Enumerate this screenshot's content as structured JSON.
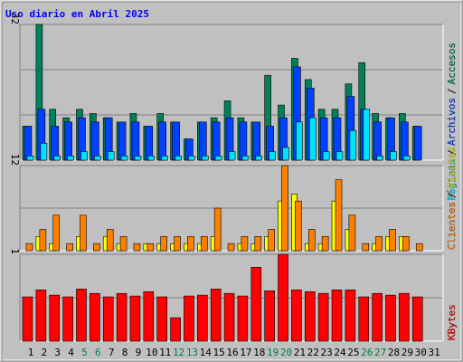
{
  "chart_data": [
    {
      "type": "bar",
      "title": "Uso diario en Abril 2025",
      "legend_separator": "/",
      "ylim": [
        0,
        32
      ],
      "yticks": [
        32
      ],
      "series": [
        {
          "name": "Páginas",
          "color": "#00e0ff",
          "values": [
            1,
            4,
            1,
            1,
            2,
            1,
            2,
            1,
            1,
            1,
            1,
            1,
            1,
            1,
            1,
            2,
            1,
            1,
            2,
            3,
            9,
            10,
            2,
            2,
            7,
            12,
            1,
            2,
            1,
            0,
            null
          ]
        },
        {
          "name": "Archivos",
          "color": "#0040ff",
          "values": [
            8,
            12,
            8,
            9,
            10,
            9,
            10,
            9,
            9,
            8,
            9,
            9,
            5,
            9,
            9,
            10,
            9,
            9,
            8,
            10,
            22,
            17,
            10,
            10,
            15,
            12,
            9,
            10,
            9,
            8,
            null
          ]
        },
        {
          "name": "Accesos",
          "color": "#00805c",
          "values": [
            8,
            32,
            12,
            10,
            12,
            11,
            10,
            9,
            11,
            8,
            11,
            9,
            5,
            9,
            10,
            14,
            10,
            9,
            20,
            13,
            24,
            19,
            12,
            12,
            18,
            23,
            11,
            10,
            11,
            8,
            null
          ]
        }
      ]
    },
    {
      "type": "bar",
      "legend_separator": "/",
      "ylim": [
        0,
        12
      ],
      "yticks": [
        12
      ],
      "series": [
        {
          "name": "Clientes",
          "color": "#ff8000",
          "values": [
            1,
            3,
            5,
            1,
            5,
            1,
            3,
            2,
            1,
            1,
            2,
            2,
            2,
            2,
            6,
            1,
            2,
            2,
            3,
            12,
            7,
            3,
            2,
            10,
            5,
            1,
            2,
            3,
            2,
            1,
            null
          ]
        },
        {
          "name": "Visitas",
          "color": "#ffff00",
          "values": [
            0,
            2,
            1,
            0,
            2,
            0,
            2,
            1,
            0,
            1,
            1,
            1,
            1,
            1,
            2,
            0,
            1,
            1,
            2,
            7,
            8,
            1,
            1,
            7,
            3,
            0,
            1,
            2,
            2,
            0,
            null
          ]
        }
      ]
    },
    {
      "type": "bar",
      "ylim": [
        0,
        1
      ],
      "yticks": [
        1
      ],
      "series": [
        {
          "name": "KBytes",
          "color": "#ff0000",
          "values": [
            0.51,
            0.59,
            0.53,
            0.51,
            0.6,
            0.55,
            0.51,
            0.55,
            0.52,
            0.57,
            0.51,
            0.27,
            0.52,
            0.53,
            0.6,
            0.55,
            0.52,
            0.85,
            0.58,
            1,
            0.59,
            0.57,
            0.55,
            0.59,
            0.59,
            0.51,
            0.55,
            0.53,
            0.55,
            0.51,
            null
          ]
        }
      ],
      "categories": [
        "1",
        "2",
        "3",
        "4",
        "5",
        "6",
        "7",
        "8",
        "9",
        "10",
        "11",
        "12",
        "13",
        "14",
        "15",
        "16",
        "17",
        "18",
        "19",
        "20",
        "21",
        "22",
        "23",
        "24",
        "25",
        "26",
        "27",
        "28",
        "29",
        "30",
        "31"
      ],
      "category_colors": [
        "#000",
        "#000",
        "#000",
        "#000",
        "#008040",
        "#008040",
        "#000",
        "#000",
        "#000",
        "#000",
        "#000",
        "#008040",
        "#008040",
        "#000",
        "#000",
        "#000",
        "#000",
        "#000",
        "#008040",
        "#008040",
        "#000",
        "#000",
        "#000",
        "#000",
        "#000",
        "#008040",
        "#008040",
        "#000",
        "#000",
        "#000",
        "#000"
      ]
    }
  ]
}
